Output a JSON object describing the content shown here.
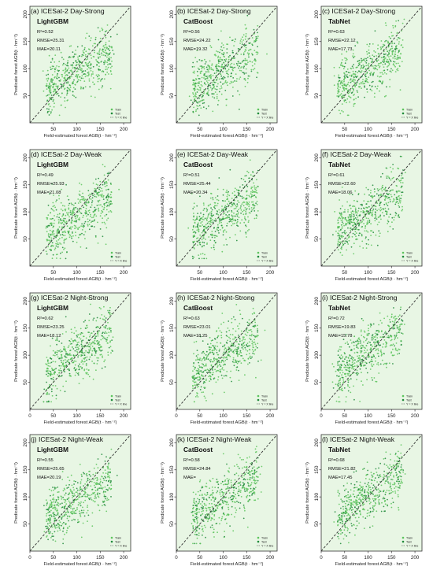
{
  "figure": {
    "xlabel": "Field-estimated forest AGB(t · hm⁻²)",
    "ylabel": "Predicate forest AGB(t · hm⁻²)",
    "legend_train": "Train",
    "legend_test": "Test",
    "legend_line": "Y = X line"
  },
  "chart_data": [
    {
      "type": "scatter",
      "panel": "(a)",
      "title": "ICESat-2 Day-Strong",
      "model": "LightGBM",
      "r2": "R²=0.52",
      "rmse": "RMSE=25.31",
      "mae": "MAE=20.11",
      "xlim": [
        0,
        215
      ],
      "ylim": [
        0,
        215
      ],
      "xticks": [
        50,
        100,
        150,
        200
      ],
      "yticks": [
        50,
        100,
        150,
        200
      ]
    },
    {
      "type": "scatter",
      "panel": "(b)",
      "title": "ICESat-2 Day-Strong",
      "model": "CatBoost",
      "r2": "R²=0.56",
      "rmse": "RMSE=24.22",
      "mae": "MAE=19.32",
      "xlim": [
        0,
        215
      ],
      "ylim": [
        0,
        215
      ],
      "xticks": [
        50,
        100,
        150,
        200
      ],
      "yticks": [
        50,
        100,
        150,
        200
      ]
    },
    {
      "type": "scatter",
      "panel": "(c)",
      "title": "ICESat-2 Day-Strong",
      "model": "TabNet",
      "r2": "R²=0.63",
      "rmse": "RMSE=22.12",
      "mae": "MAE=17.73",
      "xlim": [
        0,
        215
      ],
      "ylim": [
        0,
        215
      ],
      "xticks": [
        50,
        100,
        150,
        200
      ],
      "yticks": [
        50,
        100,
        150,
        200
      ]
    },
    {
      "type": "scatter",
      "panel": "(d)",
      "title": "ICESat-2 Day-Weak",
      "model": "LightGBM",
      "r2": "R²=0.49",
      "rmse": "RMSE=25.93",
      "mae": "MAE=21.08",
      "xlim": [
        0,
        215
      ],
      "ylim": [
        0,
        215
      ],
      "xticks": [
        50,
        100,
        150,
        200
      ],
      "yticks": [
        50,
        100,
        150,
        200
      ]
    },
    {
      "type": "scatter",
      "panel": "(e)",
      "title": "ICESat-2 Day-Weak",
      "model": "CatBoost",
      "r2": "R²=0.51",
      "rmse": "RMSE=25.44",
      "mae": "MAE=20.34",
      "xlim": [
        0,
        215
      ],
      "ylim": [
        0,
        215
      ],
      "xticks": [
        50,
        100,
        150,
        200
      ],
      "yticks": [
        50,
        100,
        150,
        200
      ]
    },
    {
      "type": "scatter",
      "panel": "(f)",
      "title": "ICESat-2 Day-Weak",
      "model": "TabNet",
      "r2": "R²=0.61",
      "rmse": "RMSE=22.60",
      "mae": "MAE=18.06",
      "xlim": [
        0,
        215
      ],
      "ylim": [
        0,
        215
      ],
      "xticks": [
        50,
        100,
        150,
        200
      ],
      "yticks": [
        50,
        100,
        150,
        200
      ]
    },
    {
      "type": "scatter",
      "panel": "(g)",
      "title": "ICESat-2 Night-Strong",
      "model": "LightGBM",
      "r2": "R²=0.62",
      "rmse": "RMSE=23.25",
      "mae": "MAE=18.12",
      "xlim": [
        0,
        215
      ],
      "ylim": [
        0,
        215
      ],
      "xticks": [
        0,
        50,
        100,
        150,
        200
      ],
      "yticks": [
        50,
        100,
        150,
        200
      ]
    },
    {
      "type": "scatter",
      "panel": "(h)",
      "title": "ICESat-2 Night-Strong",
      "model": "CatBoost",
      "r2": "R²=0.63",
      "rmse": "RMSE=23.01",
      "mae": "MAE=18.25",
      "xlim": [
        0,
        215
      ],
      "ylim": [
        0,
        215
      ],
      "xticks": [
        0,
        50,
        100,
        150,
        200
      ],
      "yticks": [
        50,
        100,
        150,
        200
      ]
    },
    {
      "type": "scatter",
      "panel": "(i)",
      "title": "ICESat-2 Night-Strong",
      "model": "TabNet",
      "r2": "R²=0.72",
      "rmse": "RMSE=19.83",
      "mae": "MAE=15.78",
      "xlim": [
        0,
        215
      ],
      "ylim": [
        0,
        215
      ],
      "xticks": [
        0,
        50,
        100,
        150,
        200
      ],
      "yticks": [
        50,
        100,
        150,
        200
      ]
    },
    {
      "type": "scatter",
      "panel": "(j)",
      "title": "ICESat-2 Night-Weak",
      "model": "LightGBM",
      "r2": "R²=0.55",
      "rmse": "RMSE=25.65",
      "mae": "MAE=20.19",
      "xlim": [
        0,
        215
      ],
      "ylim": [
        0,
        215
      ],
      "xticks": [
        0,
        50,
        100,
        150,
        200
      ],
      "yticks": [
        50,
        100,
        150,
        200
      ]
    },
    {
      "type": "scatter",
      "panel": "(k)",
      "title": "ICESat-2 Night-Weak",
      "model": "CatBoost",
      "r2": "R²=0.58",
      "rmse": "RMSE=24.84",
      "mae": "MAE=",
      "xlim": [
        0,
        215
      ],
      "ylim": [
        0,
        215
      ],
      "xticks": [
        0,
        50,
        100,
        150,
        200
      ],
      "yticks": [
        50,
        100,
        150,
        200
      ]
    },
    {
      "type": "scatter",
      "panel": "(l)",
      "title": "ICESat-2 Night-Weak",
      "model": "TabNet",
      "r2": "R²=0.68",
      "rmse": "RMSE=21.82",
      "mae": "MAE=17.45",
      "xlim": [
        0,
        215
      ],
      "ylim": [
        0,
        215
      ],
      "xticks": [
        0,
        50,
        100,
        150,
        200
      ],
      "yticks": [
        50,
        100,
        150,
        200
      ]
    }
  ],
  "colors": {
    "panel_bg": "#e8f6e4",
    "point_train": "#5cc45c",
    "point_test": "#1f8a3a",
    "identity_line": "#333333",
    "axis": "#333333"
  }
}
